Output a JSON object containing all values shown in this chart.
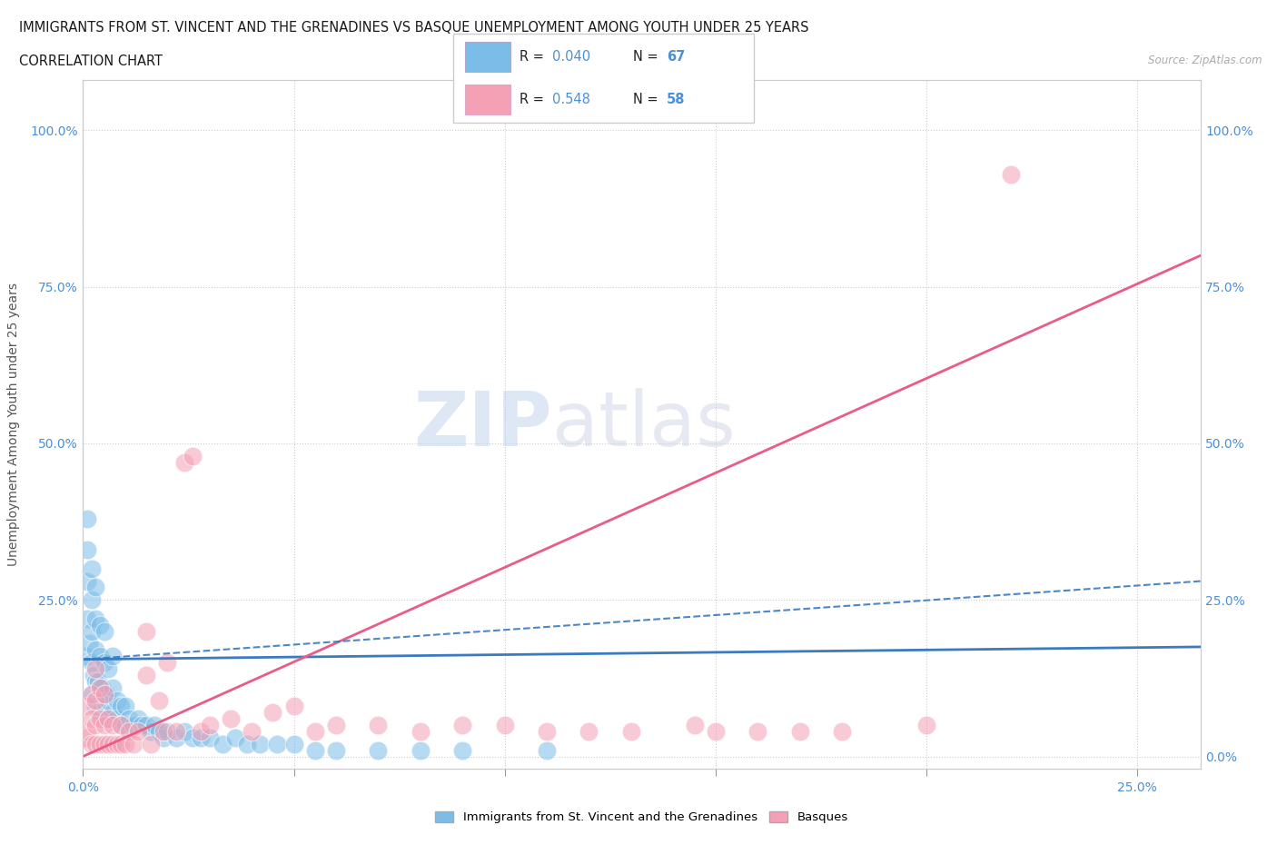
{
  "title_line1": "IMMIGRANTS FROM ST. VINCENT AND THE GRENADINES VS BASQUE UNEMPLOYMENT AMONG YOUTH UNDER 25 YEARS",
  "title_line2": "CORRELATION CHART",
  "source_text": "Source: ZipAtlas.com",
  "ylabel": "Unemployment Among Youth under 25 years",
  "xlim": [
    0.0,
    0.265
  ],
  "ylim": [
    -0.02,
    1.08
  ],
  "blue_color": "#7bbde8",
  "pink_color": "#f4a0b5",
  "blue_line_color": "#3a7abf",
  "pink_line_color": "#e85c85",
  "legend_R_blue": "0.040",
  "legend_N_blue": "67",
  "legend_R_pink": "0.548",
  "legend_N_pink": "58",
  "watermark_zip": "ZIP",
  "watermark_atlas": "atlas",
  "blue_scatter_x": [
    0.0005,
    0.001,
    0.001,
    0.001,
    0.001,
    0.0015,
    0.002,
    0.002,
    0.002,
    0.002,
    0.002,
    0.0025,
    0.003,
    0.003,
    0.003,
    0.003,
    0.003,
    0.0035,
    0.004,
    0.004,
    0.004,
    0.004,
    0.0045,
    0.005,
    0.005,
    0.005,
    0.005,
    0.0055,
    0.006,
    0.006,
    0.006,
    0.007,
    0.007,
    0.007,
    0.008,
    0.008,
    0.009,
    0.009,
    0.01,
    0.01,
    0.011,
    0.012,
    0.013,
    0.014,
    0.015,
    0.016,
    0.017,
    0.018,
    0.019,
    0.02,
    0.022,
    0.024,
    0.026,
    0.028,
    0.03,
    0.033,
    0.036,
    0.039,
    0.042,
    0.046,
    0.05,
    0.055,
    0.06,
    0.07,
    0.08,
    0.09,
    0.11
  ],
  "blue_scatter_y": [
    0.16,
    0.22,
    0.28,
    0.33,
    0.38,
    0.18,
    0.1,
    0.15,
    0.2,
    0.25,
    0.3,
    0.13,
    0.08,
    0.12,
    0.17,
    0.22,
    0.27,
    0.12,
    0.07,
    0.11,
    0.16,
    0.21,
    0.11,
    0.06,
    0.1,
    0.15,
    0.2,
    0.1,
    0.06,
    0.09,
    0.14,
    0.07,
    0.11,
    0.16,
    0.06,
    0.09,
    0.05,
    0.08,
    0.05,
    0.08,
    0.06,
    0.05,
    0.06,
    0.05,
    0.05,
    0.04,
    0.05,
    0.04,
    0.03,
    0.04,
    0.03,
    0.04,
    0.03,
    0.03,
    0.03,
    0.02,
    0.03,
    0.02,
    0.02,
    0.02,
    0.02,
    0.01,
    0.01,
    0.01,
    0.01,
    0.01,
    0.01
  ],
  "pink_scatter_x": [
    0.0005,
    0.001,
    0.001,
    0.002,
    0.002,
    0.002,
    0.003,
    0.003,
    0.003,
    0.003,
    0.004,
    0.004,
    0.004,
    0.005,
    0.005,
    0.005,
    0.006,
    0.006,
    0.007,
    0.007,
    0.008,
    0.009,
    0.009,
    0.01,
    0.011,
    0.012,
    0.013,
    0.015,
    0.015,
    0.016,
    0.018,
    0.019,
    0.02,
    0.022,
    0.024,
    0.026,
    0.028,
    0.03,
    0.035,
    0.04,
    0.045,
    0.05,
    0.055,
    0.06,
    0.07,
    0.08,
    0.09,
    0.1,
    0.11,
    0.12,
    0.13,
    0.145,
    0.15,
    0.16,
    0.17,
    0.18,
    0.2,
    0.22
  ],
  "pink_scatter_y": [
    0.03,
    0.04,
    0.08,
    0.02,
    0.06,
    0.1,
    0.02,
    0.05,
    0.09,
    0.14,
    0.02,
    0.06,
    0.11,
    0.02,
    0.05,
    0.1,
    0.02,
    0.06,
    0.02,
    0.05,
    0.02,
    0.02,
    0.05,
    0.02,
    0.04,
    0.02,
    0.04,
    0.13,
    0.2,
    0.02,
    0.09,
    0.04,
    0.15,
    0.04,
    0.47,
    0.48,
    0.04,
    0.05,
    0.06,
    0.04,
    0.07,
    0.08,
    0.04,
    0.05,
    0.05,
    0.04,
    0.05,
    0.05,
    0.04,
    0.04,
    0.04,
    0.05,
    0.04,
    0.04,
    0.04,
    0.04,
    0.05,
    0.93
  ],
  "blue_line_x": [
    0.0,
    0.265
  ],
  "blue_line_y": [
    0.155,
    0.175
  ],
  "pink_line_x": [
    0.0,
    0.265
  ],
  "pink_line_y": [
    0.0,
    0.8
  ]
}
